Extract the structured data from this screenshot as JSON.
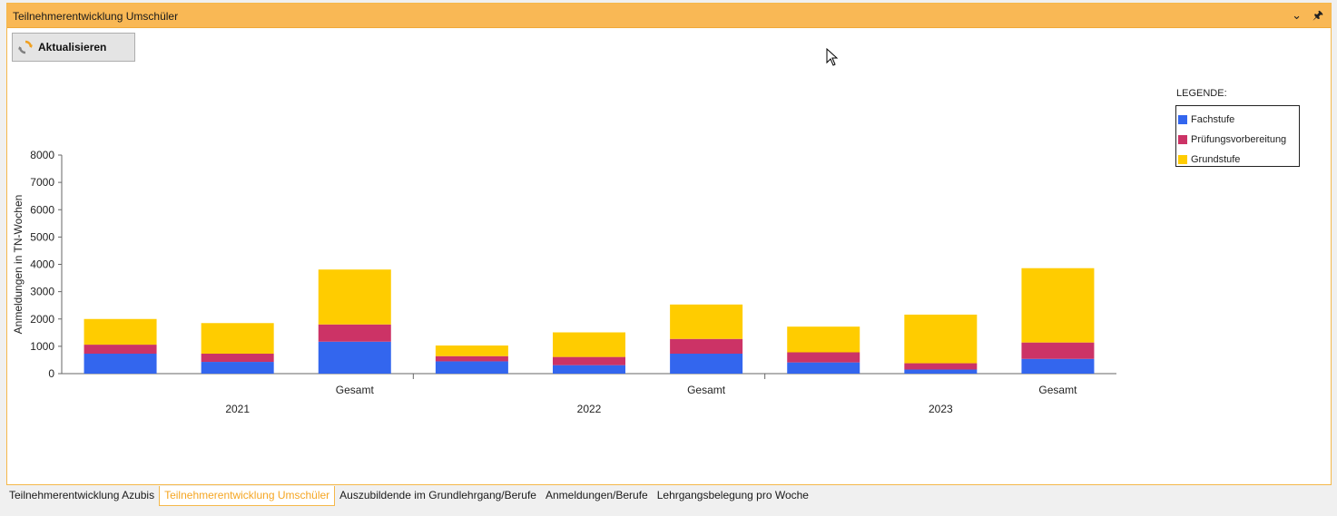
{
  "window": {
    "title": "Teilnehmerentwicklung Umschüler"
  },
  "toolbar": {
    "refresh_label": "Aktualisieren"
  },
  "legend": {
    "title": "LEGENDE:",
    "items": [
      {
        "label": "Fachstufe",
        "color": "#3366ee"
      },
      {
        "label": "Prüfungsvorbereitung",
        "color": "#cc3366"
      },
      {
        "label": "Grundstufe",
        "color": "#ffcc00"
      }
    ]
  },
  "tabs": [
    {
      "label": "Teilnehmerentwicklung Azubis",
      "active": false
    },
    {
      "label": "Teilnehmerentwicklung Umschüler",
      "active": true
    },
    {
      "label": "Auszubildende im Grundlehrgang/Berufe",
      "active": false
    },
    {
      "label": "Anmeldungen/Berufe",
      "active": false
    },
    {
      "label": "Lehrgangsbelegung pro Woche",
      "active": false
    }
  ],
  "chart_data": {
    "type": "bar",
    "stacked": true,
    "ylabel": "Anmeldungen in TN-Wochen",
    "ylim": [
      0,
      8000
    ],
    "yticks": [
      0,
      1000,
      2000,
      3000,
      4000,
      5000,
      6000,
      7000,
      8000
    ],
    "groups": [
      {
        "label": "2021",
        "categories": [
          "",
          "",
          "Gesamt"
        ]
      },
      {
        "label": "2022",
        "categories": [
          "",
          "",
          "Gesamt"
        ]
      },
      {
        "label": "2023",
        "categories": [
          "",
          "",
          "Gesamt"
        ]
      }
    ],
    "series": [
      {
        "name": "Fachstufe",
        "color": "#3366ee",
        "values": [
          730,
          430,
          1170,
          450,
          310,
          730,
          410,
          150,
          540
        ]
      },
      {
        "name": "Prüfungsvorbereitung",
        "color": "#cc3366",
        "values": [
          330,
          300,
          630,
          190,
          300,
          540,
          370,
          230,
          600
        ]
      },
      {
        "name": "Grundstufe",
        "color": "#ffcc00",
        "values": [
          940,
          1120,
          2010,
          390,
          900,
          1260,
          940,
          1780,
          2720
        ]
      }
    ]
  }
}
